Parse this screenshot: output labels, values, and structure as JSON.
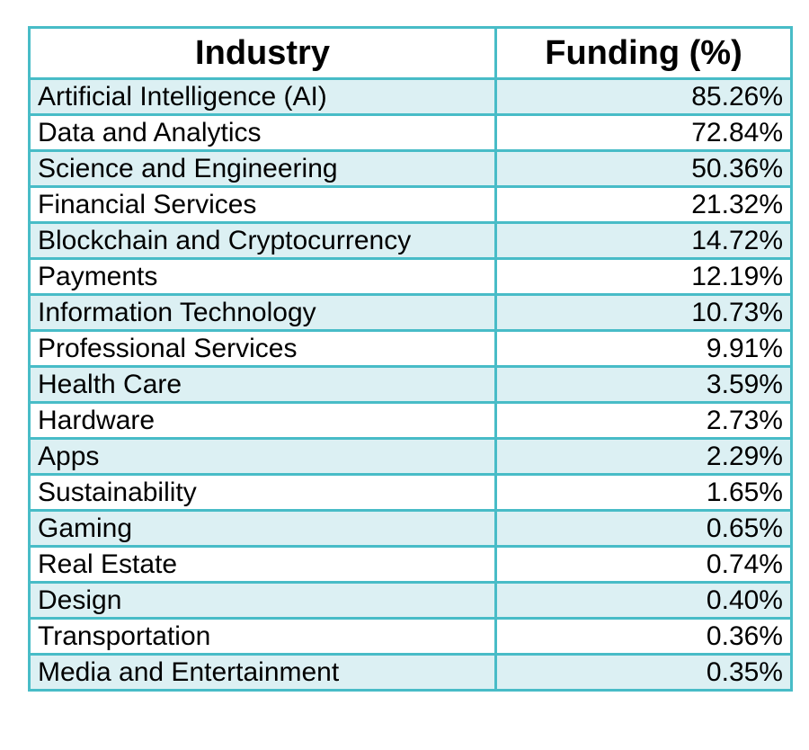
{
  "colors": {
    "border": "#48bcc7",
    "shaded_row": "#dcf0f3",
    "plain_row": "#ffffff"
  },
  "chart_data": {
    "type": "table",
    "columns": [
      "Industry",
      "Funding (%)"
    ],
    "rows": [
      [
        "Artificial Intelligence (AI)",
        "85.26%"
      ],
      [
        "Data and Analytics",
        "72.84%"
      ],
      [
        "Science and Engineering",
        "50.36%"
      ],
      [
        "Financial Services",
        "21.32%"
      ],
      [
        "Blockchain and Cryptocurrency",
        "14.72%"
      ],
      [
        "Payments",
        "12.19%"
      ],
      [
        "Information Technology",
        "10.73%"
      ],
      [
        "Professional Services",
        "9.91%"
      ],
      [
        "Health Care",
        "3.59%"
      ],
      [
        "Hardware",
        "2.73%"
      ],
      [
        "Apps",
        "2.29%"
      ],
      [
        "Sustainability",
        "1.65%"
      ],
      [
        "Gaming",
        "0.65%"
      ],
      [
        "Real Estate",
        "0.74%"
      ],
      [
        "Design",
        "0.40%"
      ],
      [
        "Transportation",
        "0.36%"
      ],
      [
        "Media and Entertainment",
        "0.35%"
      ]
    ]
  }
}
